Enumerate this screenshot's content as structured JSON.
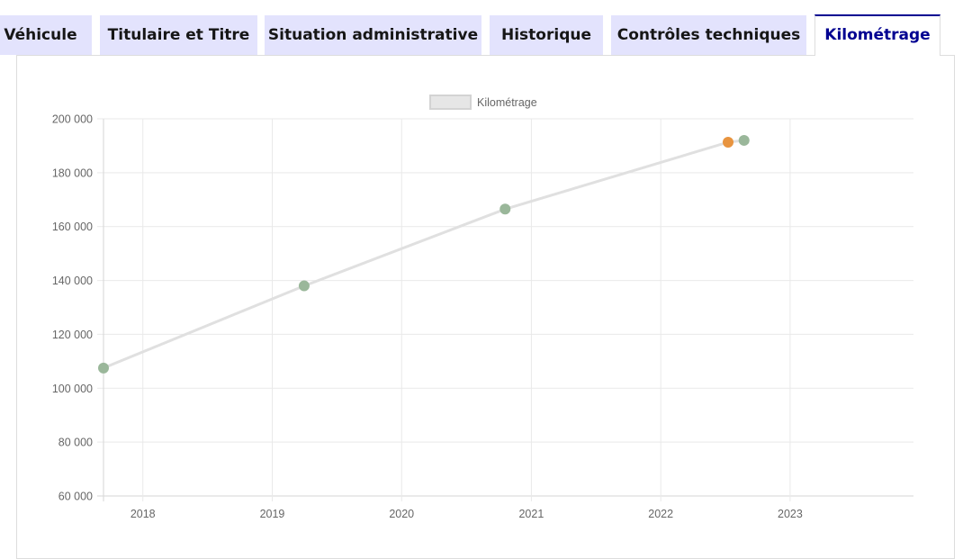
{
  "tabs": [
    {
      "label": "Véhicule",
      "active": false
    },
    {
      "label": "Titulaire et Titre",
      "active": false
    },
    {
      "label": "Situation administrative",
      "active": false
    },
    {
      "label": "Historique",
      "active": false
    },
    {
      "label": "Contrôles techniques",
      "active": false
    },
    {
      "label": "Kilométrage",
      "active": true
    }
  ],
  "colors": {
    "tab_background": "#e3e3fd",
    "tab_active_text": "#000091",
    "line": "#e0e0e0",
    "point_green": "#9ab79a",
    "point_orange": "#e8943f"
  },
  "chart_data": {
    "type": "line",
    "title": "",
    "xlabel": "",
    "ylabel": "",
    "legend": {
      "position": "top",
      "entries": [
        "Kilométrage"
      ]
    },
    "x_ticks": [
      "2018",
      "2019",
      "2020",
      "2021",
      "2022",
      "2023"
    ],
    "y_ticks": [
      "60 000",
      "80 000",
      "100 000",
      "120 000",
      "140 000",
      "160 000",
      "180 000",
      "200 000"
    ],
    "ylim": [
      60000,
      200000
    ],
    "xlim": [
      "2017-09-12",
      "2023-12-15"
    ],
    "grid": true,
    "series": [
      {
        "name": "Kilométrage",
        "points": [
          {
            "x": "2017-09-12",
            "y": 107500,
            "color": "green"
          },
          {
            "x": "2019-04-01",
            "y": 138000,
            "color": "green"
          },
          {
            "x": "2020-10-19",
            "y": 166500,
            "color": "green"
          },
          {
            "x": "2022-07-10",
            "y": 191300,
            "color": "orange"
          },
          {
            "x": "2022-08-24",
            "y": 192000,
            "color": "green"
          }
        ]
      }
    ]
  }
}
